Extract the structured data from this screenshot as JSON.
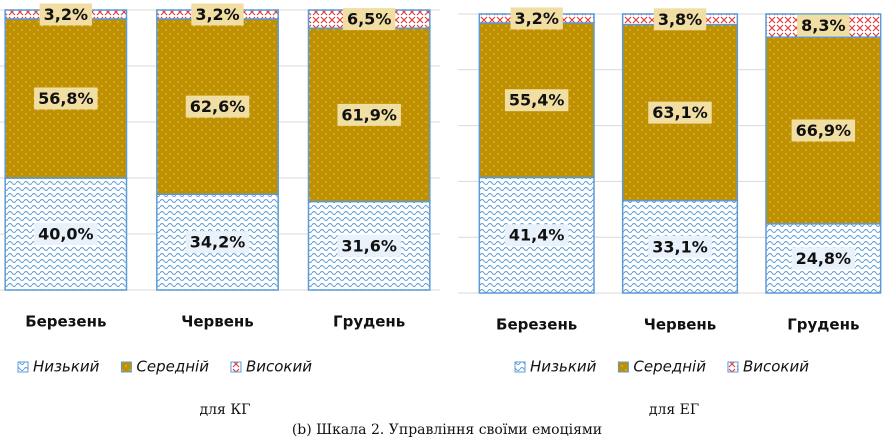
{
  "chart_data": [
    {
      "type": "stacked_bar",
      "caption": "для КГ",
      "categories": [
        "Березень",
        "Червень",
        "Грудень"
      ],
      "series": [
        {
          "name": "Низький",
          "color": "#5b9bd5",
          "values": [
            40.0,
            34.2,
            31.6
          ],
          "value_labels": [
            "40,0%",
            "34,2%",
            "31,6%"
          ]
        },
        {
          "name": "Середній",
          "color": "#bf9000",
          "values": [
            56.8,
            62.6,
            61.9
          ],
          "value_labels": [
            "56,8%",
            "62,6%",
            "61,9%"
          ]
        },
        {
          "name": "Високий",
          "color": "#e03c3c",
          "values": [
            3.2,
            3.2,
            6.5
          ],
          "value_labels": [
            "3,2%",
            "3,2%",
            "6,5%"
          ]
        }
      ],
      "ylim": [
        0,
        100
      ],
      "yticks": [
        0,
        20,
        40,
        60,
        80,
        100
      ],
      "grid": true,
      "legend": "bottom"
    },
    {
      "type": "stacked_bar",
      "caption": "для ЕГ",
      "categories": [
        "Березень",
        "Червень",
        "Грудень"
      ],
      "series": [
        {
          "name": "Низький",
          "color": "#5b9bd5",
          "values": [
            41.4,
            33.1,
            24.8
          ],
          "value_labels": [
            "41,4%",
            "33,1%",
            "24,8%"
          ]
        },
        {
          "name": "Середній",
          "color": "#bf9000",
          "values": [
            55.4,
            63.1,
            66.9
          ],
          "value_labels": [
            "55,4%",
            "63,1%",
            "66,9%"
          ]
        },
        {
          "name": "Високий",
          "color": "#e03c3c",
          "values": [
            3.2,
            3.8,
            8.3
          ],
          "value_labels": [
            "3,2%",
            "3,8%",
            "8,3%"
          ]
        }
      ],
      "ylim": [
        0,
        100
      ],
      "yticks": [
        0,
        20,
        40,
        60,
        80,
        100
      ],
      "grid": true,
      "legend": "bottom"
    }
  ],
  "figure_caption": "(b) Шкала 2. Управління своїми емоціями"
}
